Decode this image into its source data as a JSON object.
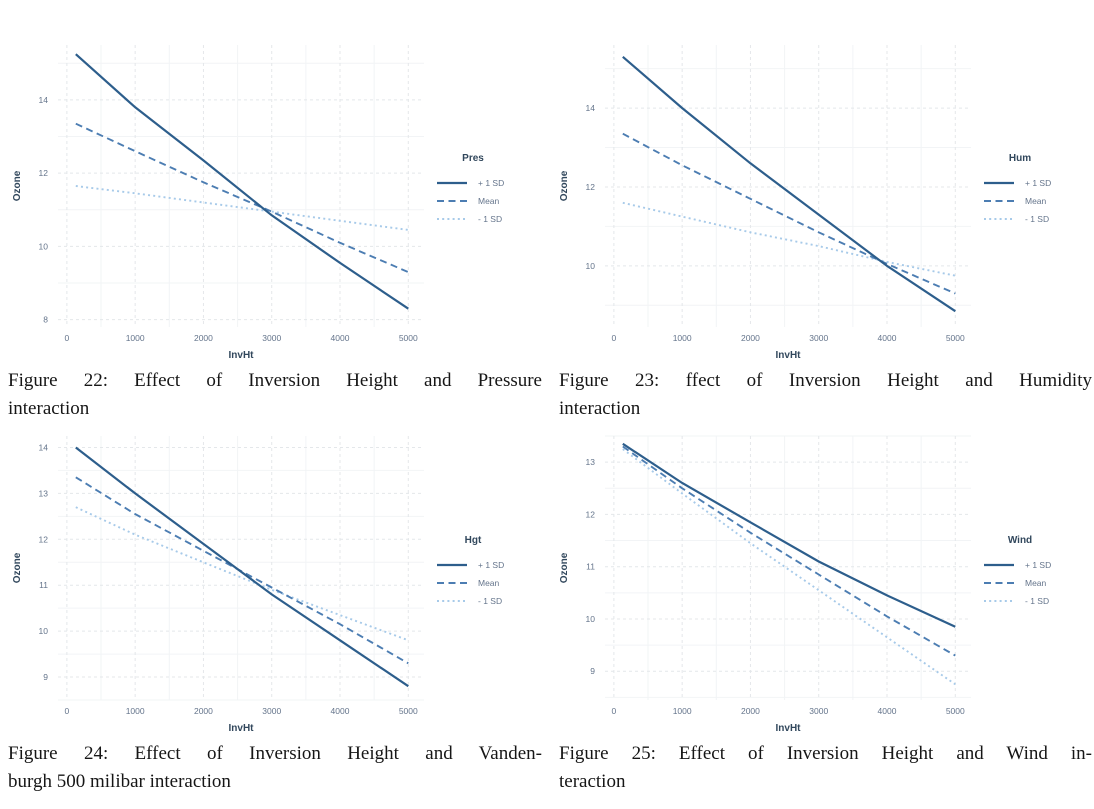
{
  "figures": [
    {
      "name": "Figure 22",
      "caption_lines": [
        "Figure 22: Effect of Inversion Height and Pressure",
        "interaction"
      ]
    },
    {
      "name": "Figure 23",
      "caption_lines": [
        "Figure 23: ffect of Inversion Height and Humidity",
        "interaction"
      ]
    },
    {
      "name": "Figure 24",
      "caption_lines": [
        "Figure 24: Effect of Inversion Height and Vanden-",
        "burgh 500 milibar interaction"
      ]
    },
    {
      "name": "Figure 25",
      "caption_lines": [
        "Figure 25: Effect of Inversion Height and Wind in-",
        "teraction"
      ]
    }
  ],
  "colors": {
    "solid_line": "#2d5e8c",
    "dashed_line": "#4c7db2",
    "dotted_line": "#a7cae9",
    "grid_major": "#e4e7ea",
    "grid_minor": "#f2f4f6",
    "tick_label": "#64748b",
    "axis_title": "#31475c",
    "caption_text": "#161616"
  },
  "chart_data": [
    {
      "type": "line",
      "xlabel": "InvHt",
      "ylabel": "Ozone",
      "legend_title": "Pres",
      "legend_position": "right",
      "grid": "dashed-major",
      "x_ticks": [
        0,
        1000,
        2000,
        3000,
        4000,
        5000
      ],
      "y_ticks": [
        8,
        10,
        12,
        14
      ],
      "xlim": [
        -130,
        5230
      ],
      "ylim": [
        7.8,
        15.5
      ],
      "x": [
        130,
        1000,
        2000,
        3000,
        4000,
        5000
      ],
      "series": [
        {
          "name": "+ 1 SD",
          "style": "solid",
          "values": [
            15.25,
            13.8,
            12.35,
            10.85,
            9.55,
            8.3
          ]
        },
        {
          "name": "Mean",
          "style": "dashed",
          "values": [
            13.35,
            12.6,
            11.75,
            10.95,
            10.1,
            9.3
          ]
        },
        {
          "name": "- 1 SD",
          "style": "dotted",
          "values": [
            11.65,
            11.45,
            11.2,
            10.95,
            10.7,
            10.45
          ]
        }
      ]
    },
    {
      "type": "line",
      "xlabel": "InvHt",
      "ylabel": "Ozone",
      "legend_title": "Hum",
      "legend_position": "right",
      "grid": "dashed-major",
      "x_ticks": [
        0,
        1000,
        2000,
        3000,
        4000,
        5000
      ],
      "y_ticks": [
        10,
        12,
        14
      ],
      "xlim": [
        -130,
        5230
      ],
      "ylim": [
        8.45,
        15.6
      ],
      "x": [
        130,
        1000,
        2000,
        3000,
        4000,
        5000
      ],
      "series": [
        {
          "name": "+ 1 SD",
          "style": "solid",
          "values": [
            15.3,
            14.0,
            12.6,
            11.3,
            10.0,
            8.85
          ]
        },
        {
          "name": "Mean",
          "style": "dashed",
          "values": [
            13.35,
            12.55,
            11.7,
            10.85,
            10.05,
            9.3
          ]
        },
        {
          "name": "- 1 SD",
          "style": "dotted",
          "values": [
            11.6,
            11.25,
            10.85,
            10.5,
            10.1,
            9.75
          ]
        }
      ]
    },
    {
      "type": "line",
      "xlabel": "InvHt",
      "ylabel": "Ozone",
      "legend_title": "Hgt",
      "legend_position": "right",
      "grid": "dashed-major",
      "x_ticks": [
        0,
        1000,
        2000,
        3000,
        4000,
        5000
      ],
      "y_ticks": [
        9,
        10,
        11,
        12,
        13,
        14
      ],
      "xlim": [
        -130,
        5230
      ],
      "ylim": [
        8.5,
        14.25
      ],
      "x": [
        130,
        1000,
        2000,
        3000,
        4000,
        5000
      ],
      "series": [
        {
          "name": "+ 1 SD",
          "style": "solid",
          "values": [
            14.0,
            13.0,
            11.9,
            10.8,
            9.8,
            8.8
          ]
        },
        {
          "name": "Mean",
          "style": "dashed",
          "values": [
            13.35,
            12.55,
            11.75,
            10.95,
            10.15,
            9.3
          ]
        },
        {
          "name": "- 1 SD",
          "style": "dotted",
          "values": [
            12.7,
            12.1,
            11.5,
            10.9,
            10.35,
            9.8
          ]
        }
      ]
    },
    {
      "type": "line",
      "xlabel": "InvHt",
      "ylabel": "Ozone",
      "legend_title": "Wind",
      "legend_position": "right",
      "grid": "dashed-major",
      "x_ticks": [
        0,
        1000,
        2000,
        3000,
        4000,
        5000
      ],
      "y_ticks": [
        9,
        10,
        11,
        12,
        13
      ],
      "xlim": [
        -130,
        5230
      ],
      "ylim": [
        8.45,
        13.5
      ],
      "x": [
        130,
        1000,
        2000,
        3000,
        4000,
        5000
      ],
      "series": [
        {
          "name": "+ 1 SD",
          "style": "solid",
          "values": [
            13.35,
            12.6,
            11.85,
            11.1,
            10.45,
            9.85
          ]
        },
        {
          "name": "Mean",
          "style": "dashed",
          "values": [
            13.3,
            12.5,
            11.65,
            10.85,
            10.05,
            9.3
          ]
        },
        {
          "name": "- 1 SD",
          "style": "dotted",
          "values": [
            13.25,
            12.4,
            11.45,
            10.55,
            9.65,
            8.75
          ]
        }
      ]
    }
  ]
}
